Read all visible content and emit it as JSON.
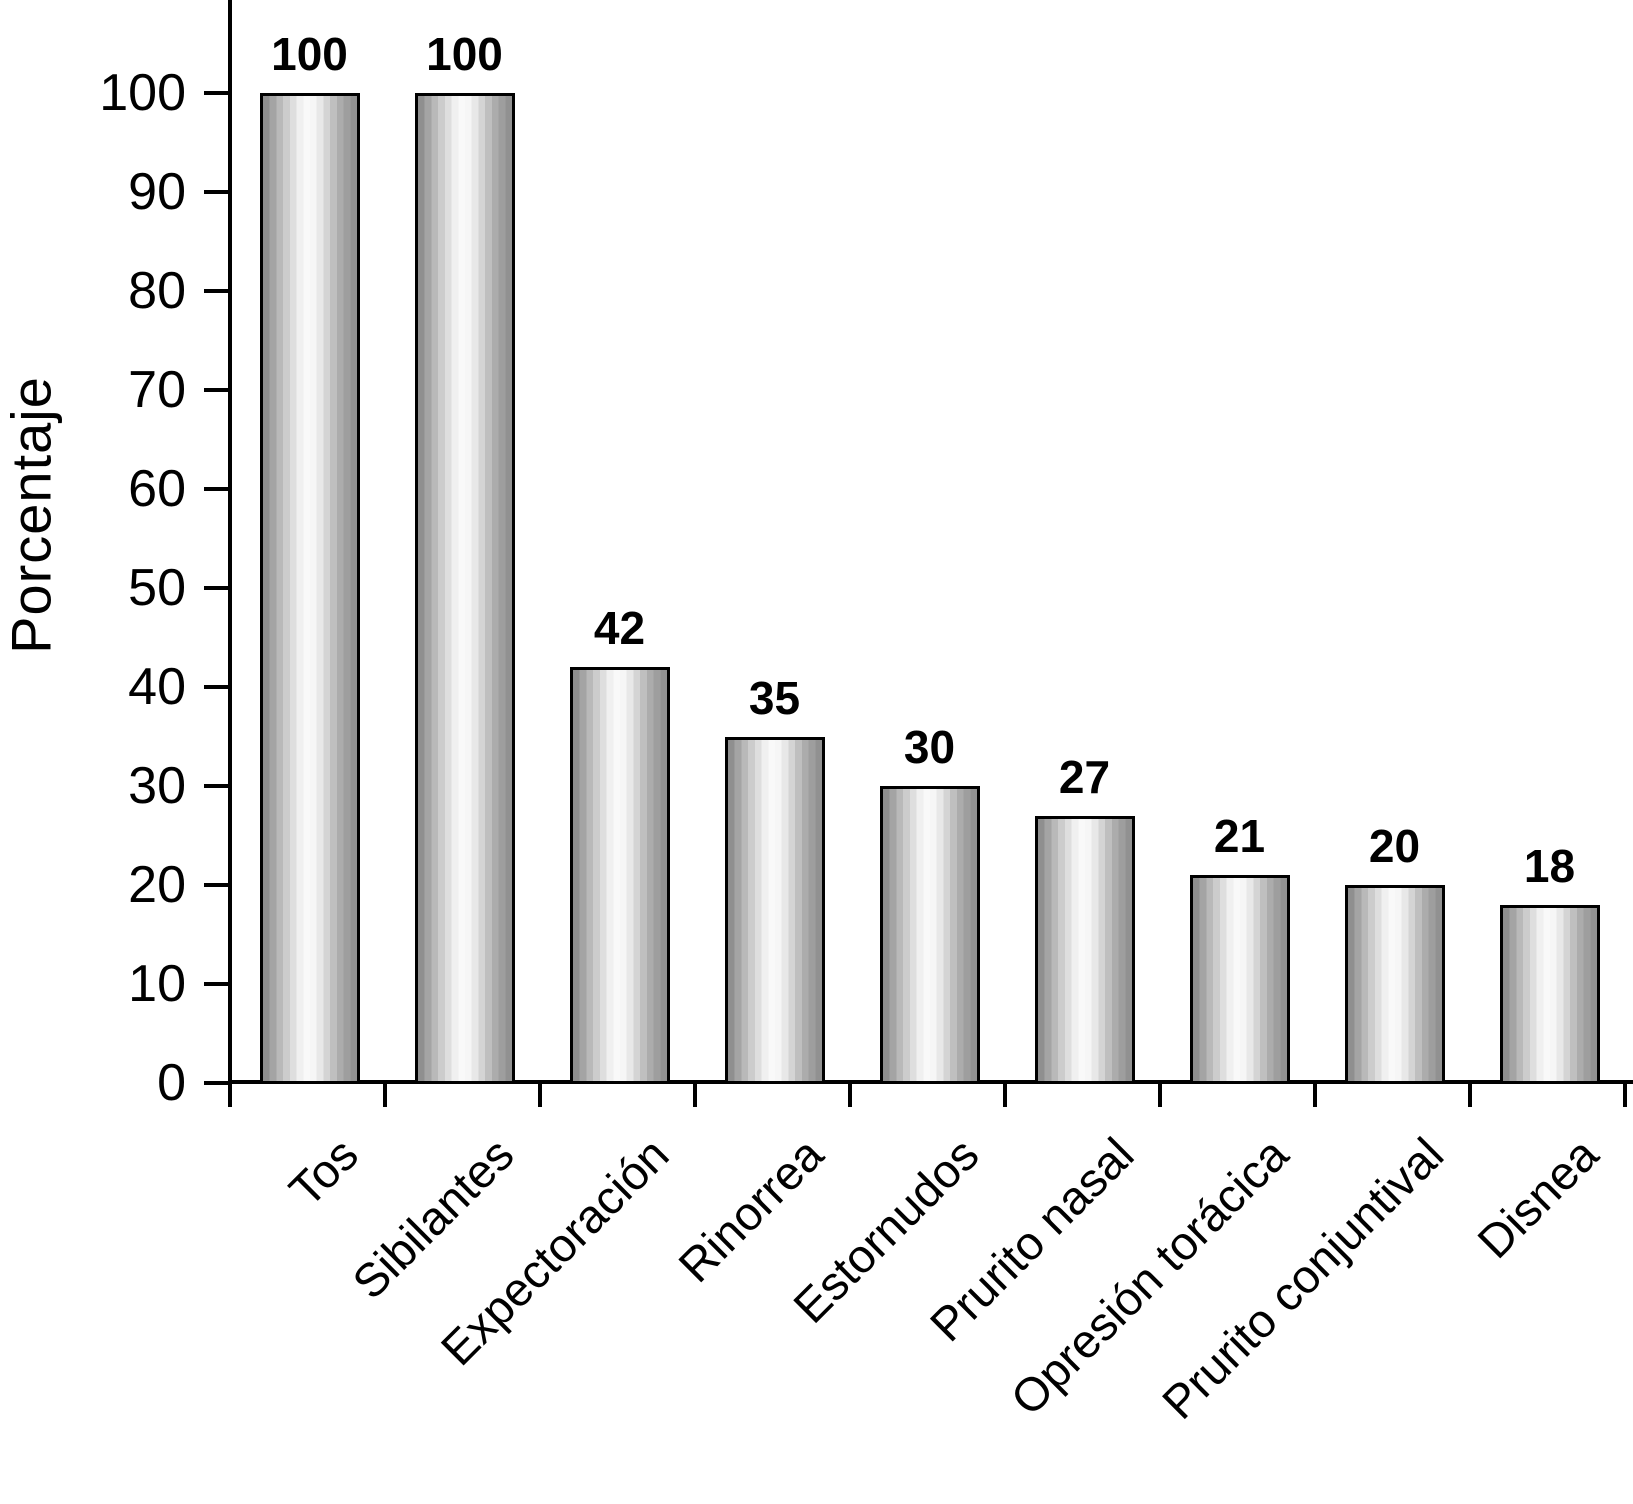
{
  "chart_data": {
    "type": "bar",
    "title": "",
    "xlabel": "",
    "ylabel": "Porcentaje",
    "categories": [
      "Tos",
      "Sibilantes",
      "Expectoración",
      "Rinorrea",
      "Estornudos",
      "Prurito nasal",
      "Opresión torácica",
      "Prurito conjuntival",
      "Disnea"
    ],
    "values": [
      100,
      100,
      42,
      35,
      30,
      27,
      21,
      20,
      18
    ],
    "bar_value_labels": [
      "100",
      "100",
      "42",
      "35",
      "30",
      "27",
      "21",
      "20",
      "18"
    ],
    "ylim": [
      0,
      100
    ],
    "yticks": [
      0,
      10,
      20,
      30,
      40,
      50,
      60,
      70,
      80,
      90,
      100
    ],
    "grid": false,
    "legend": null,
    "colors": {
      "background": "#ffffff",
      "axis": "#000000",
      "text": "#000000",
      "bar_border": "#000000",
      "bar_gradient_stops": [
        "#848484",
        "#b9b9b9",
        "#eeeeee",
        "#fdfdfd",
        "#e6e6e6",
        "#b0b0b0",
        "#8a8a8a"
      ]
    }
  }
}
